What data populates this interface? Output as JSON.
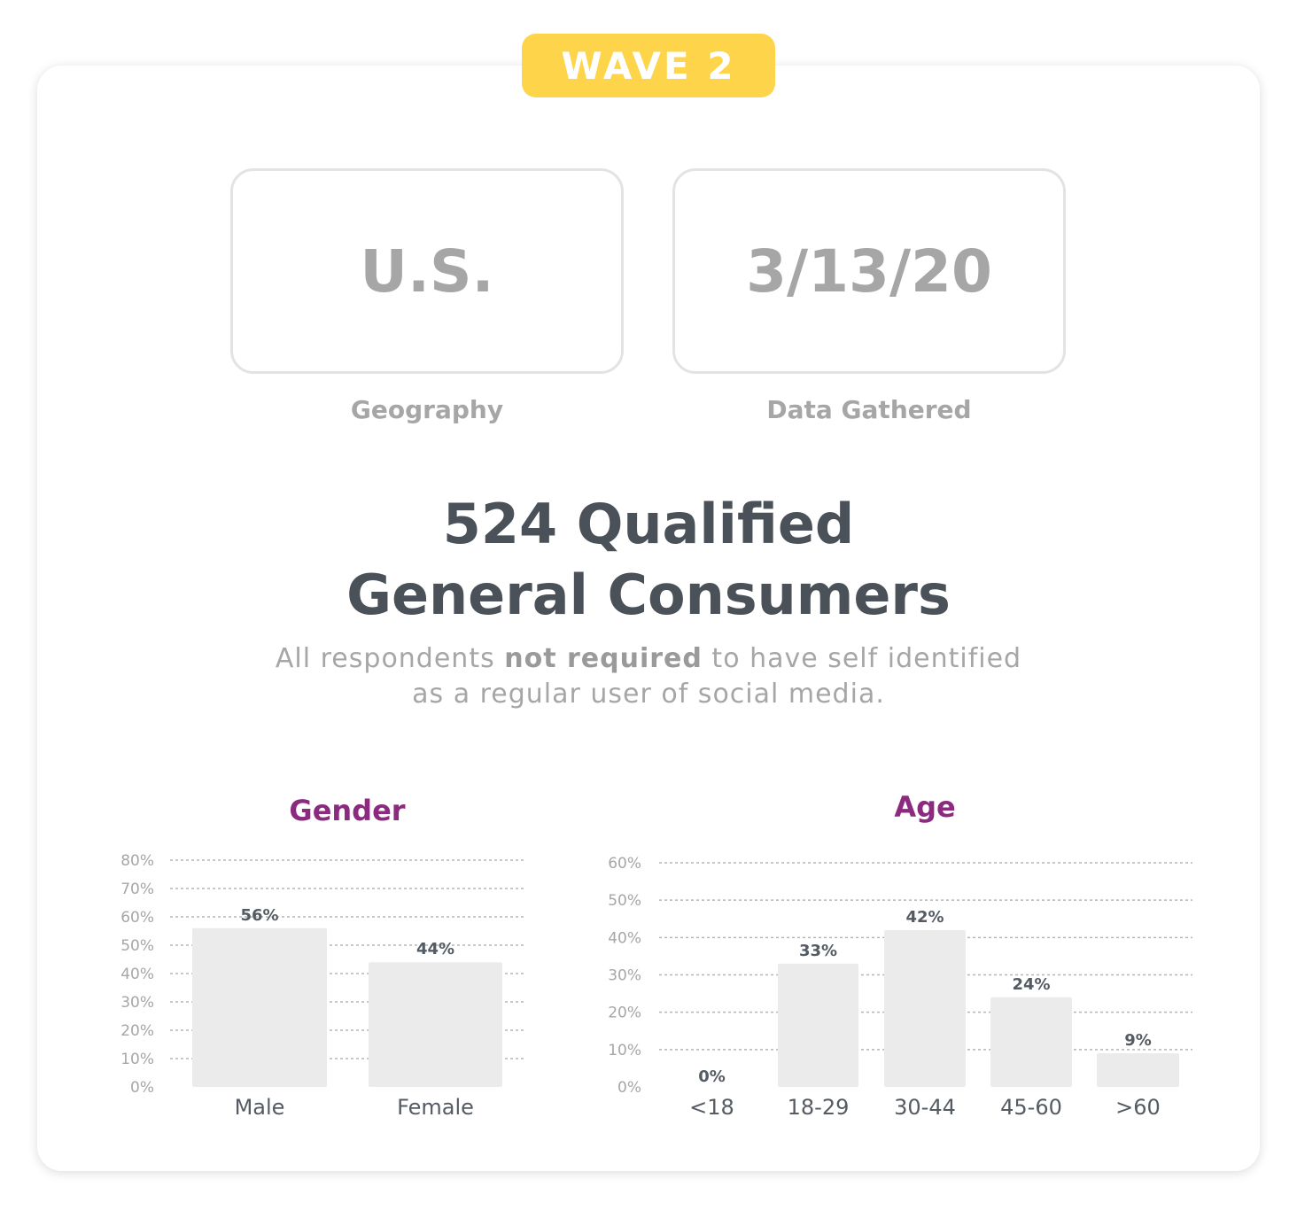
{
  "badge": {
    "label": "WAVE 2"
  },
  "info": [
    {
      "value": "U.S.",
      "label": "Geography"
    },
    {
      "value": "3/13/20",
      "label": "Data Gathered"
    }
  ],
  "headline": {
    "line1": "524 Qualified",
    "line2": "General Consumers"
  },
  "subtext": {
    "pre": "All respondents ",
    "bold": "not required",
    "post": " to have self identified",
    "line2": "as a regular user of social media."
  },
  "colors": {
    "accent": "#fdd44a",
    "title": "#8b2a7e",
    "bar": "#ebebeb",
    "text": "#4b5159",
    "muted": "#a6a6a6"
  },
  "chart_data": [
    {
      "type": "bar",
      "title": "Gender",
      "categories": [
        "Male",
        "Female"
      ],
      "values": [
        56,
        44
      ],
      "data_labels": [
        "56%",
        "44%"
      ],
      "yticks": [
        "0%",
        "10%",
        "20%",
        "30%",
        "40%",
        "50%",
        "60%",
        "70%",
        "80%"
      ],
      "ylim": [
        0,
        80
      ],
      "grid": true
    },
    {
      "type": "bar",
      "title": "Age",
      "categories": [
        "<18",
        "18-29",
        "30-44",
        "45-60",
        ">60"
      ],
      "values": [
        0,
        33,
        42,
        24,
        9
      ],
      "data_labels": [
        "0%",
        "33%",
        "42%",
        "24%",
        "9%"
      ],
      "yticks": [
        "0%",
        "10%",
        "20%",
        "30%",
        "40%",
        "50%",
        "60%"
      ],
      "ylim": [
        0,
        60
      ],
      "grid": true
    }
  ]
}
